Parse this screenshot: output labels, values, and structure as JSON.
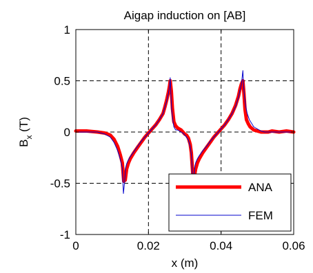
{
  "chart_data": {
    "type": "line",
    "title": "Aigap induction on [AB]",
    "xlabel": "x (m)",
    "ylabel_main": "B",
    "ylabel_sub": "x",
    "ylabel_tail": " (T)",
    "xlim": [
      0,
      0.06
    ],
    "ylim": [
      -1,
      1
    ],
    "xticks": [
      0,
      0.02,
      0.04,
      0.06
    ],
    "xtick_labels": [
      "0",
      "0.02",
      "0.04",
      "0.06"
    ],
    "yticks": [
      -1,
      -0.5,
      0,
      0.5,
      1
    ],
    "ytick_labels": [
      "-1",
      "-0.5",
      "0",
      "0.5",
      "1"
    ],
    "grid": true,
    "legend_position": "bottom-right",
    "series": [
      {
        "name": "ANA",
        "color": "#ff0000",
        "x": [
          0,
          0.003,
          0.006,
          0.008,
          0.0095,
          0.0105,
          0.0115,
          0.0122,
          0.0128,
          0.0132,
          0.0136,
          0.014,
          0.0145,
          0.015,
          0.016,
          0.017,
          0.018,
          0.019,
          0.02,
          0.021,
          0.022,
          0.023,
          0.024,
          0.0245,
          0.025,
          0.0255,
          0.0258,
          0.026,
          0.0263,
          0.0266,
          0.027,
          0.0275,
          0.028,
          0.029,
          0.0295,
          0.03,
          0.0305,
          0.031,
          0.0315,
          0.0318,
          0.032,
          0.0323,
          0.0326,
          0.033,
          0.0335,
          0.034,
          0.035,
          0.036,
          0.037,
          0.038,
          0.039,
          0.04,
          0.041,
          0.042,
          0.043,
          0.044,
          0.0448,
          0.0452,
          0.0456,
          0.046,
          0.0463,
          0.0466,
          0.047,
          0.0475,
          0.048,
          0.049,
          0.05,
          0.051,
          0.052,
          0.053,
          0.054,
          0.056,
          0.058,
          0.06
        ],
        "y": [
          0.01,
          0.01,
          0.0,
          -0.01,
          -0.03,
          -0.07,
          -0.14,
          -0.22,
          -0.3,
          -0.48,
          -0.47,
          -0.36,
          -0.3,
          -0.26,
          -0.2,
          -0.15,
          -0.1,
          -0.05,
          -0.01,
          0.03,
          0.07,
          0.12,
          0.18,
          0.24,
          0.31,
          0.39,
          0.45,
          0.5,
          0.4,
          0.23,
          0.1,
          0.06,
          0.04,
          0.02,
          0.0,
          -0.02,
          -0.03,
          -0.06,
          -0.12,
          -0.2,
          -0.3,
          -0.45,
          -0.44,
          -0.36,
          -0.3,
          -0.26,
          -0.2,
          -0.15,
          -0.1,
          -0.05,
          -0.01,
          0.03,
          0.07,
          0.12,
          0.18,
          0.26,
          0.35,
          0.42,
          0.47,
          0.5,
          0.38,
          0.22,
          0.12,
          0.08,
          0.05,
          0.02,
          0.01,
          0.0,
          0.0,
          0.0,
          0.01,
          0.0,
          0.01,
          0.0
        ]
      },
      {
        "name": "FEM",
        "color": "#0000cc",
        "x": [
          0,
          0.003,
          0.006,
          0.008,
          0.0095,
          0.0105,
          0.0115,
          0.0122,
          0.0128,
          0.0131,
          0.0134,
          0.0137,
          0.014,
          0.0145,
          0.015,
          0.016,
          0.017,
          0.018,
          0.019,
          0.02,
          0.021,
          0.022,
          0.023,
          0.024,
          0.0245,
          0.025,
          0.0255,
          0.0258,
          0.026,
          0.0262,
          0.0264,
          0.0267,
          0.027,
          0.0275,
          0.028,
          0.029,
          0.0295,
          0.03,
          0.0305,
          0.031,
          0.0315,
          0.0318,
          0.032,
          0.0322,
          0.0325,
          0.0328,
          0.033,
          0.0335,
          0.034,
          0.035,
          0.036,
          0.037,
          0.038,
          0.039,
          0.04,
          0.041,
          0.042,
          0.043,
          0.044,
          0.0448,
          0.0452,
          0.0456,
          0.046,
          0.0462,
          0.0465,
          0.0468,
          0.0472,
          0.0478,
          0.0485,
          0.049,
          0.05,
          0.051,
          0.052,
          0.053,
          0.054,
          0.056,
          0.058,
          0.06
        ],
        "y": [
          0.0,
          0.0,
          0.0,
          -0.02,
          -0.05,
          -0.1,
          -0.18,
          -0.26,
          -0.35,
          -0.6,
          -0.5,
          -0.35,
          -0.31,
          -0.27,
          -0.24,
          -0.19,
          -0.14,
          -0.09,
          -0.05,
          -0.01,
          0.03,
          0.07,
          0.12,
          0.18,
          0.24,
          0.3,
          0.38,
          0.44,
          0.53,
          0.35,
          0.22,
          0.12,
          0.05,
          0.02,
          0.02,
          0.0,
          -0.01,
          -0.03,
          -0.05,
          -0.08,
          -0.14,
          -0.22,
          -0.32,
          -0.55,
          -0.44,
          -0.33,
          -0.3,
          -0.26,
          -0.23,
          -0.18,
          -0.14,
          -0.09,
          -0.05,
          -0.01,
          0.03,
          0.07,
          0.12,
          0.18,
          0.25,
          0.34,
          0.41,
          0.47,
          0.6,
          0.45,
          0.33,
          0.25,
          0.18,
          0.12,
          0.08,
          0.05,
          0.03,
          0.01,
          0.0,
          0.0,
          0.0,
          0.0,
          0.0,
          0.0
        ]
      }
    ]
  }
}
